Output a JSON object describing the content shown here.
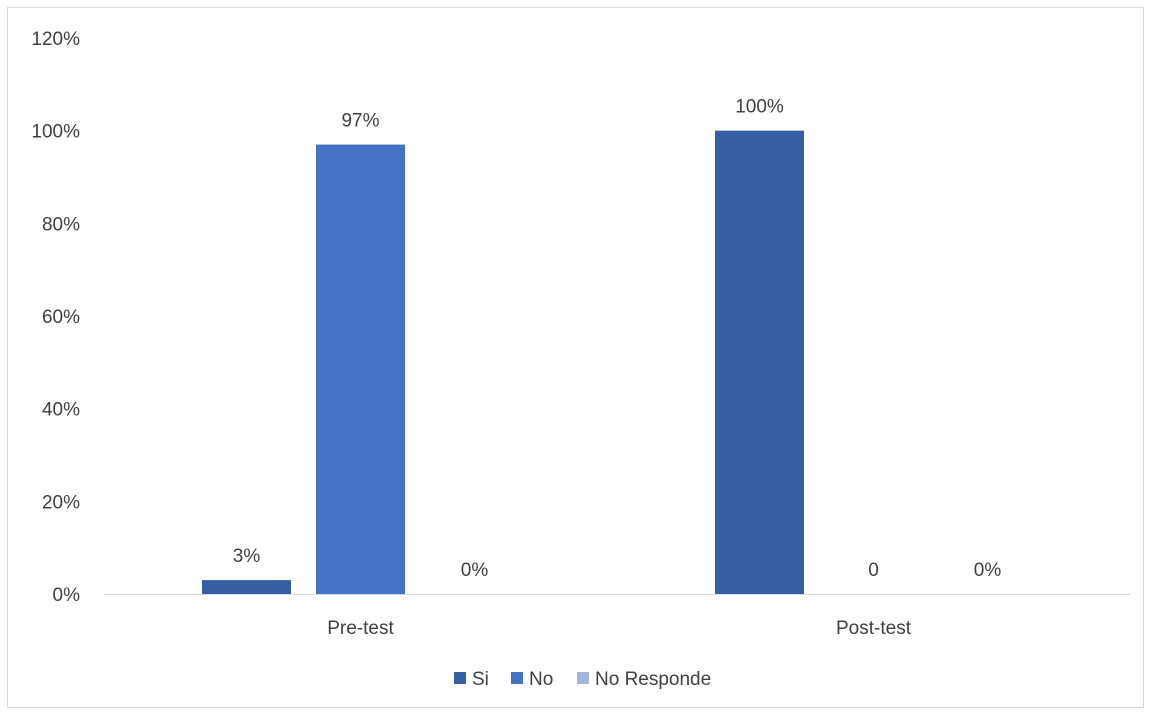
{
  "chart_data": {
    "type": "bar",
    "title": "",
    "xlabel": "",
    "ylabel": "",
    "categories": [
      "Pre-test",
      "Post-test"
    ],
    "ylim": [
      0,
      120
    ],
    "yticks": [
      0,
      20,
      40,
      60,
      80,
      100,
      120
    ],
    "ytick_labels": [
      "0%",
      "20%",
      "40%",
      "60%",
      "80%",
      "100%",
      "120%"
    ],
    "grid": false,
    "legend_position": "bottom",
    "series": [
      {
        "name": "Si",
        "color": "#365ea2",
        "values": [
          3,
          100
        ],
        "labels": [
          "3%",
          "100%"
        ]
      },
      {
        "name": "No",
        "color": "#4472c4",
        "values": [
          97,
          0
        ],
        "labels": [
          "97%",
          "0"
        ]
      },
      {
        "name": "No Responde",
        "color": "#a5b4dc",
        "values": [
          0,
          0
        ],
        "labels": [
          "0%",
          "0%"
        ]
      }
    ]
  }
}
